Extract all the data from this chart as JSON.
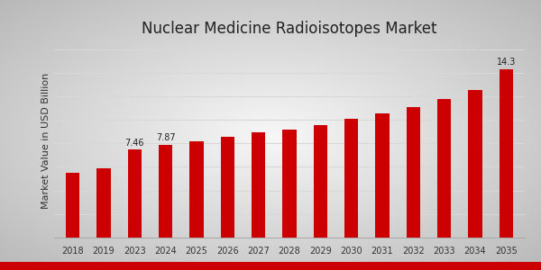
{
  "title": "Nuclear Medicine Radioisotopes Market",
  "ylabel": "Market Value in USD Billion",
  "bar_color": "#cc0000",
  "years": [
    2018,
    2019,
    2023,
    2024,
    2025,
    2026,
    2027,
    2028,
    2029,
    2030,
    2031,
    2032,
    2033,
    2034,
    2035
  ],
  "values": [
    5.5,
    5.9,
    7.46,
    7.87,
    8.15,
    8.55,
    8.9,
    9.2,
    9.55,
    10.05,
    10.55,
    11.1,
    11.75,
    12.5,
    14.3
  ],
  "labeled_bars": {
    "2023": "7.46",
    "2024": "7.87",
    "2035": "14.3"
  },
  "title_fontsize": 12,
  "label_fontsize": 7,
  "tick_fontsize": 7,
  "ylabel_fontsize": 8,
  "ylim": [
    0,
    16.5
  ],
  "grid_color": "#d8d8d8",
  "bottom_bar_color": "#cc0000",
  "bottom_bar_height": 0.03
}
